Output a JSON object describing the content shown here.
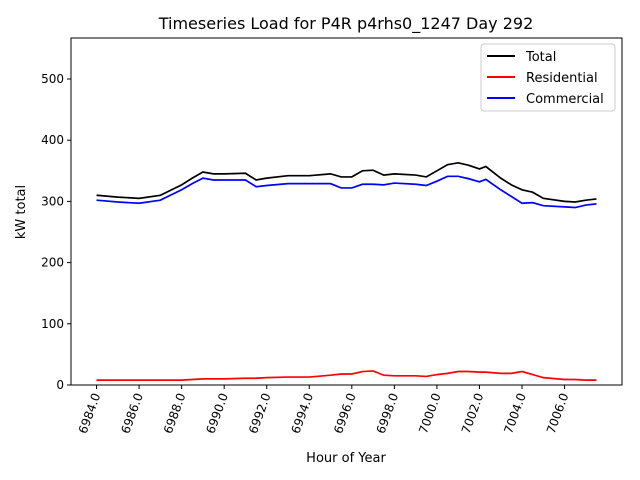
{
  "chart_data": {
    "type": "line",
    "title": "Timeseries Load for P4R p4rhs0_1247  Day 292",
    "xlabel": "Hour of Year",
    "ylabel": "kW total",
    "xlim": [
      6982.8,
      7008.7
    ],
    "ylim": [
      0,
      567
    ],
    "xticks": [
      6984,
      6986,
      6988,
      6990,
      6992,
      6994,
      6996,
      6998,
      7000,
      7002,
      7004,
      7006
    ],
    "xtick_labels": [
      "6984.0",
      "6986.0",
      "6988.0",
      "6990.0",
      "6992.0",
      "6994.0",
      "6996.0",
      "6998.0",
      "7000.0",
      "7002.0",
      "7004.0",
      "7006.0"
    ],
    "yticks": [
      0,
      100,
      200,
      300,
      400,
      500
    ],
    "ytick_labels": [
      "0",
      "100",
      "200",
      "300",
      "400",
      "500"
    ],
    "legend_position": "top-right",
    "x": [
      6984,
      6985,
      6986,
      6987,
      6988,
      6988.5,
      6989,
      6989.5,
      6990,
      6991,
      6991.5,
      6992,
      6993,
      6994,
      6995,
      6995.5,
      6996,
      6996.5,
      6997,
      6997.5,
      6998,
      6999,
      6999.5,
      7000,
      7000.5,
      7001,
      7001.5,
      7002,
      7002.3,
      7003,
      7003.5,
      7004,
      7004.5,
      7005,
      7006,
      7006.5,
      7007,
      7007.5
    ],
    "series": [
      {
        "name": "Total",
        "color": "#000000",
        "values": [
          310,
          307,
          305,
          310,
          327,
          338,
          348,
          345,
          345,
          346,
          335,
          338,
          342,
          342,
          345,
          340,
          340,
          350,
          351,
          343,
          345,
          343,
          340,
          350,
          360,
          363,
          359,
          353,
          357,
          338,
          327,
          319,
          315,
          305,
          300,
          299,
          302,
          304
        ]
      },
      {
        "name": "Residential",
        "color": "#ff0000",
        "values": [
          8,
          8,
          8,
          8,
          8,
          9,
          10,
          10,
          10,
          11,
          11,
          12,
          13,
          13,
          16,
          18,
          18,
          22,
          23,
          16,
          15,
          15,
          14,
          17,
          19,
          22,
          22,
          21,
          21,
          19,
          19,
          22,
          17,
          12,
          9,
          9,
          8,
          8
        ]
      },
      {
        "name": "Commercial",
        "color": "#0000ff",
        "values": [
          302,
          299,
          297,
          302,
          319,
          329,
          338,
          335,
          335,
          335,
          324,
          326,
          329,
          329,
          329,
          322,
          322,
          328,
          328,
          327,
          330,
          328,
          326,
          333,
          341,
          341,
          337,
          332,
          336,
          319,
          308,
          297,
          298,
          293,
          291,
          290,
          294,
          296
        ]
      }
    ]
  }
}
